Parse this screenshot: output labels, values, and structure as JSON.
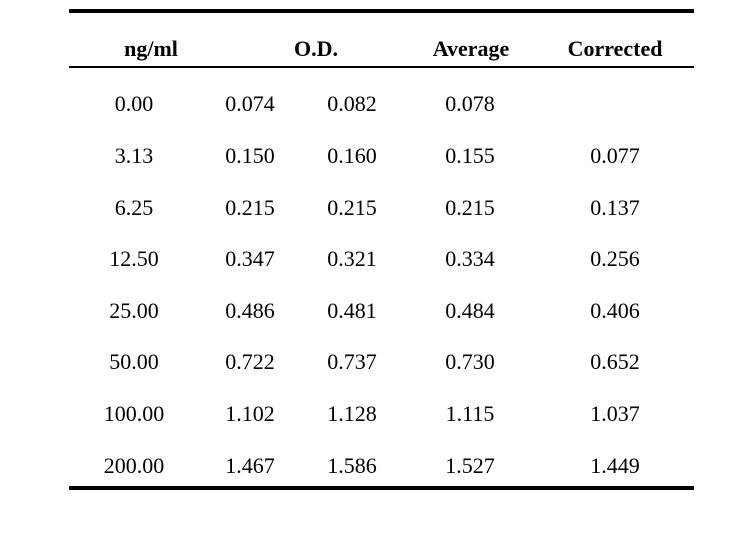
{
  "table": {
    "headers": {
      "conc": "ng/ml",
      "od": "O.D.",
      "average": "Average",
      "corrected": "Corrected"
    },
    "rows": [
      {
        "conc": "0.00",
        "od1": "0.074",
        "od2": "0.082",
        "average": "0.078",
        "corrected": ""
      },
      {
        "conc": "3.13",
        "od1": "0.150",
        "od2": "0.160",
        "average": "0.155",
        "corrected": "0.077"
      },
      {
        "conc": "6.25",
        "od1": "0.215",
        "od2": "0.215",
        "average": "0.215",
        "corrected": "0.137"
      },
      {
        "conc": "12.50",
        "od1": "0.347",
        "od2": "0.321",
        "average": "0.334",
        "corrected": "0.256"
      },
      {
        "conc": "25.00",
        "od1": "0.486",
        "od2": "0.481",
        "average": "0.484",
        "corrected": "0.406"
      },
      {
        "conc": "50.00",
        "od1": "0.722",
        "od2": "0.737",
        "average": "0.730",
        "corrected": "0.652"
      },
      {
        "conc": "100.00",
        "od1": "1.102",
        "od2": "1.128",
        "average": "1.115",
        "corrected": "1.037"
      },
      {
        "conc": "200.00",
        "od1": "1.467",
        "od2": "1.586",
        "average": "1.527",
        "corrected": "1.449"
      }
    ]
  }
}
